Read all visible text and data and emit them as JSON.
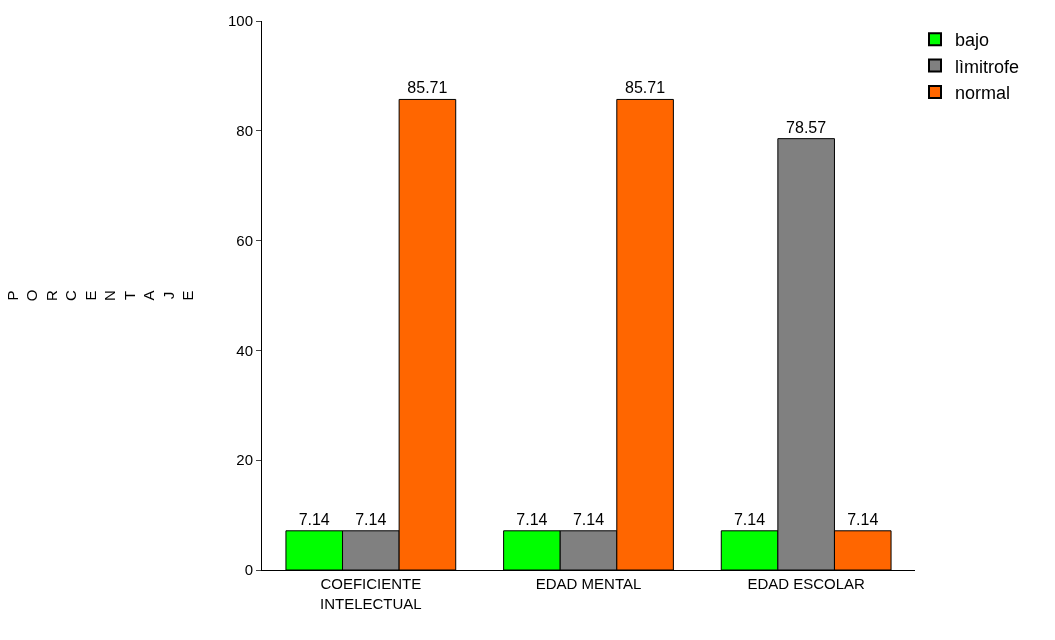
{
  "chart_data": {
    "type": "bar",
    "ylabel": "PORCENTAJE",
    "categories": [
      "COEFICIENTE\nINTELECTUAL",
      "EDAD MENTAL",
      "EDAD ESCOLAR"
    ],
    "series": [
      {
        "name": "bajo",
        "color": "#00ff00",
        "values": [
          7.14,
          7.14,
          7.14
        ]
      },
      {
        "name": "lìmitrofe",
        "color": "#808080",
        "values": [
          7.14,
          7.14,
          78.57
        ]
      },
      {
        "name": "normal",
        "color": "#ff6600",
        "values": [
          85.71,
          85.71,
          7.14
        ]
      }
    ],
    "ylim": [
      0,
      100
    ],
    "yticks": [
      0,
      20,
      40,
      60,
      80,
      100
    ],
    "grid": false,
    "legend": "top right",
    "data_labels": true
  }
}
